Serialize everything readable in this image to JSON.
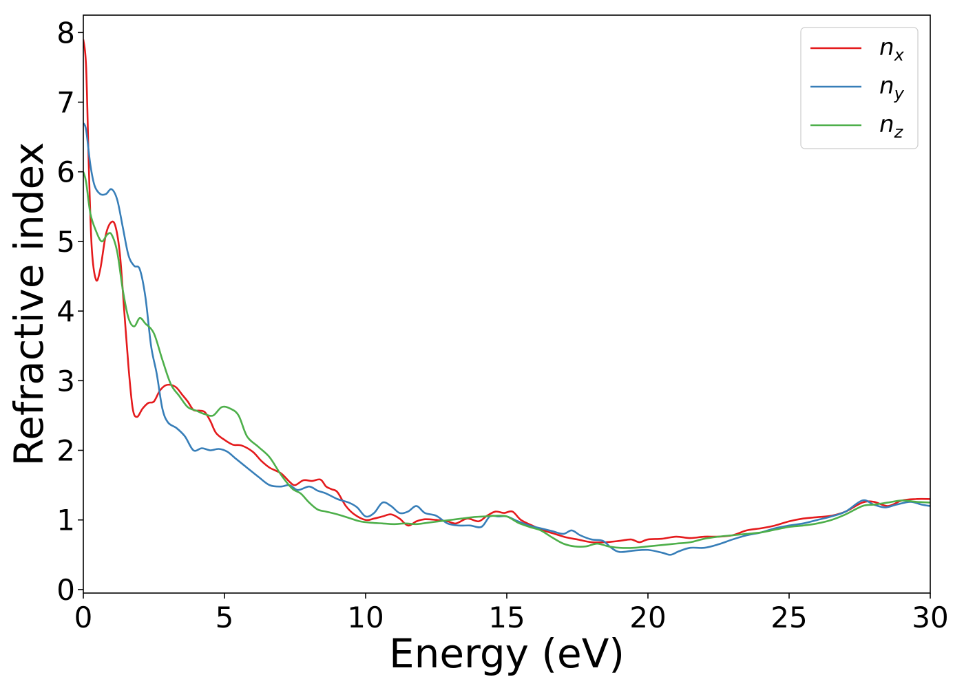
{
  "chart_data": {
    "type": "line",
    "title": "",
    "xlabel": "Energy (eV)",
    "ylabel": "Refractive index",
    "xlim": [
      0,
      30
    ],
    "ylim": [
      -0.05,
      8.25
    ],
    "xticks": [
      0,
      5,
      10,
      15,
      20,
      25,
      30
    ],
    "xtick_labels": [
      "0",
      "5",
      "10",
      "15",
      "20",
      "25",
      "30"
    ],
    "yticks": [
      0,
      1,
      2,
      3,
      4,
      5,
      6,
      7,
      8
    ],
    "ytick_labels": [
      "0",
      "1",
      "2",
      "3",
      "4",
      "5",
      "6",
      "7",
      "8"
    ],
    "grid": false,
    "legend_position": "top-right",
    "series": [
      {
        "name": "n",
        "subscript": "x",
        "color": "#e41a1c",
        "points": [
          [
            0,
            7.9
          ],
          [
            0.1,
            7.5
          ],
          [
            0.2,
            6.0
          ],
          [
            0.3,
            4.9
          ],
          [
            0.45,
            4.45
          ],
          [
            0.6,
            4.6
          ],
          [
            0.8,
            5.1
          ],
          [
            1.0,
            5.28
          ],
          [
            1.15,
            5.2
          ],
          [
            1.3,
            4.8
          ],
          [
            1.45,
            4.0
          ],
          [
            1.6,
            3.2
          ],
          [
            1.75,
            2.6
          ],
          [
            1.9,
            2.48
          ],
          [
            2.1,
            2.6
          ],
          [
            2.3,
            2.68
          ],
          [
            2.5,
            2.7
          ],
          [
            2.7,
            2.85
          ],
          [
            2.9,
            2.93
          ],
          [
            3.1,
            2.94
          ],
          [
            3.3,
            2.9
          ],
          [
            3.5,
            2.8
          ],
          [
            3.7,
            2.7
          ],
          [
            3.9,
            2.58
          ],
          [
            4.1,
            2.57
          ],
          [
            4.3,
            2.55
          ],
          [
            4.5,
            2.42
          ],
          [
            4.7,
            2.25
          ],
          [
            5.0,
            2.15
          ],
          [
            5.3,
            2.08
          ],
          [
            5.6,
            2.07
          ],
          [
            6.0,
            1.98
          ],
          [
            6.3,
            1.85
          ],
          [
            6.6,
            1.75
          ],
          [
            7.0,
            1.67
          ],
          [
            7.3,
            1.55
          ],
          [
            7.5,
            1.5
          ],
          [
            7.8,
            1.57
          ],
          [
            8.1,
            1.56
          ],
          [
            8.4,
            1.58
          ],
          [
            8.6,
            1.48
          ],
          [
            8.8,
            1.44
          ],
          [
            9.0,
            1.4
          ],
          [
            9.3,
            1.2
          ],
          [
            9.6,
            1.08
          ],
          [
            10.0,
            1.0
          ],
          [
            10.3,
            1.02
          ],
          [
            10.6,
            1.05
          ],
          [
            10.9,
            1.08
          ],
          [
            11.2,
            1.02
          ],
          [
            11.5,
            0.92
          ],
          [
            11.8,
            0.98
          ],
          [
            12.1,
            1.01
          ],
          [
            12.5,
            1.0
          ],
          [
            12.9,
            0.98
          ],
          [
            13.2,
            0.95
          ],
          [
            13.6,
            1.02
          ],
          [
            14.0,
            0.98
          ],
          [
            14.3,
            1.06
          ],
          [
            14.6,
            1.12
          ],
          [
            14.9,
            1.1
          ],
          [
            15.2,
            1.12
          ],
          [
            15.5,
            1.0
          ],
          [
            15.9,
            0.92
          ],
          [
            16.3,
            0.85
          ],
          [
            16.7,
            0.8
          ],
          [
            17.1,
            0.75
          ],
          [
            17.5,
            0.72
          ],
          [
            18.0,
            0.68
          ],
          [
            18.5,
            0.68
          ],
          [
            19.0,
            0.7
          ],
          [
            19.4,
            0.72
          ],
          [
            19.7,
            0.68
          ],
          [
            20.0,
            0.72
          ],
          [
            20.5,
            0.73
          ],
          [
            21.0,
            0.76
          ],
          [
            21.5,
            0.74
          ],
          [
            22.0,
            0.76
          ],
          [
            22.5,
            0.76
          ],
          [
            23.0,
            0.78
          ],
          [
            23.5,
            0.85
          ],
          [
            24.0,
            0.88
          ],
          [
            24.5,
            0.92
          ],
          [
            25.0,
            0.98
          ],
          [
            25.5,
            1.02
          ],
          [
            26.0,
            1.04
          ],
          [
            26.5,
            1.06
          ],
          [
            27.0,
            1.12
          ],
          [
            27.6,
            1.25
          ],
          [
            28.0,
            1.26
          ],
          [
            28.5,
            1.2
          ],
          [
            29.0,
            1.28
          ],
          [
            29.5,
            1.3
          ],
          [
            30.0,
            1.3
          ]
        ]
      },
      {
        "name": "n",
        "subscript": "y",
        "color": "#377eb8",
        "points": [
          [
            0,
            6.7
          ],
          [
            0.1,
            6.6
          ],
          [
            0.25,
            6.1
          ],
          [
            0.4,
            5.8
          ],
          [
            0.6,
            5.68
          ],
          [
            0.8,
            5.68
          ],
          [
            1.0,
            5.75
          ],
          [
            1.2,
            5.6
          ],
          [
            1.4,
            5.2
          ],
          [
            1.6,
            4.8
          ],
          [
            1.8,
            4.65
          ],
          [
            2.0,
            4.6
          ],
          [
            2.2,
            4.2
          ],
          [
            2.4,
            3.5
          ],
          [
            2.6,
            3.1
          ],
          [
            2.8,
            2.6
          ],
          [
            3.0,
            2.4
          ],
          [
            3.3,
            2.32
          ],
          [
            3.6,
            2.2
          ],
          [
            3.9,
            2.0
          ],
          [
            4.2,
            2.03
          ],
          [
            4.5,
            2.0
          ],
          [
            4.8,
            2.02
          ],
          [
            5.1,
            1.98
          ],
          [
            5.4,
            1.88
          ],
          [
            5.8,
            1.75
          ],
          [
            6.2,
            1.62
          ],
          [
            6.6,
            1.5
          ],
          [
            7.0,
            1.48
          ],
          [
            7.3,
            1.5
          ],
          [
            7.6,
            1.43
          ],
          [
            8.0,
            1.48
          ],
          [
            8.3,
            1.42
          ],
          [
            8.6,
            1.38
          ],
          [
            9.0,
            1.3
          ],
          [
            9.4,
            1.25
          ],
          [
            9.7,
            1.18
          ],
          [
            10.0,
            1.05
          ],
          [
            10.3,
            1.1
          ],
          [
            10.6,
            1.25
          ],
          [
            10.9,
            1.2
          ],
          [
            11.2,
            1.1
          ],
          [
            11.5,
            1.12
          ],
          [
            11.8,
            1.2
          ],
          [
            12.1,
            1.1
          ],
          [
            12.5,
            1.06
          ],
          [
            12.9,
            0.95
          ],
          [
            13.3,
            0.92
          ],
          [
            13.7,
            0.92
          ],
          [
            14.1,
            0.9
          ],
          [
            14.4,
            1.05
          ],
          [
            14.7,
            1.05
          ],
          [
            15.0,
            1.05
          ],
          [
            15.4,
            0.98
          ],
          [
            15.8,
            0.92
          ],
          [
            16.2,
            0.88
          ],
          [
            16.6,
            0.84
          ],
          [
            17.0,
            0.8
          ],
          [
            17.3,
            0.85
          ],
          [
            17.6,
            0.78
          ],
          [
            18.0,
            0.72
          ],
          [
            18.4,
            0.7
          ],
          [
            18.7,
            0.6
          ],
          [
            19.0,
            0.54
          ],
          [
            19.5,
            0.56
          ],
          [
            20.0,
            0.57
          ],
          [
            20.5,
            0.53
          ],
          [
            20.8,
            0.5
          ],
          [
            21.1,
            0.55
          ],
          [
            21.5,
            0.6
          ],
          [
            22.0,
            0.6
          ],
          [
            22.5,
            0.65
          ],
          [
            23.0,
            0.72
          ],
          [
            23.5,
            0.78
          ],
          [
            24.0,
            0.82
          ],
          [
            24.5,
            0.88
          ],
          [
            25.0,
            0.92
          ],
          [
            25.5,
            0.95
          ],
          [
            26.0,
            1.0
          ],
          [
            26.5,
            1.05
          ],
          [
            27.0,
            1.12
          ],
          [
            27.6,
            1.28
          ],
          [
            28.0,
            1.22
          ],
          [
            28.4,
            1.18
          ],
          [
            28.8,
            1.22
          ],
          [
            29.3,
            1.26
          ],
          [
            29.7,
            1.22
          ],
          [
            30.0,
            1.2
          ]
        ]
      },
      {
        "name": "n",
        "subscript": "z",
        "color": "#4daf4a",
        "points": [
          [
            0,
            6.0
          ],
          [
            0.1,
            5.85
          ],
          [
            0.25,
            5.4
          ],
          [
            0.45,
            5.15
          ],
          [
            0.65,
            5.0
          ],
          [
            0.85,
            5.1
          ],
          [
            1.0,
            5.1
          ],
          [
            1.2,
            4.85
          ],
          [
            1.4,
            4.3
          ],
          [
            1.6,
            3.9
          ],
          [
            1.8,
            3.78
          ],
          [
            2.0,
            3.9
          ],
          [
            2.2,
            3.82
          ],
          [
            2.5,
            3.68
          ],
          [
            2.8,
            3.3
          ],
          [
            3.1,
            2.95
          ],
          [
            3.4,
            2.78
          ],
          [
            3.7,
            2.62
          ],
          [
            4.0,
            2.57
          ],
          [
            4.3,
            2.52
          ],
          [
            4.6,
            2.5
          ],
          [
            4.9,
            2.62
          ],
          [
            5.2,
            2.6
          ],
          [
            5.5,
            2.5
          ],
          [
            5.8,
            2.2
          ],
          [
            6.2,
            2.05
          ],
          [
            6.6,
            1.9
          ],
          [
            7.0,
            1.65
          ],
          [
            7.4,
            1.45
          ],
          [
            7.7,
            1.38
          ],
          [
            8.0,
            1.25
          ],
          [
            8.3,
            1.15
          ],
          [
            8.6,
            1.12
          ],
          [
            9.0,
            1.08
          ],
          [
            9.4,
            1.03
          ],
          [
            9.8,
            0.98
          ],
          [
            10.2,
            0.96
          ],
          [
            10.6,
            0.95
          ],
          [
            11.0,
            0.94
          ],
          [
            11.4,
            0.95
          ],
          [
            11.8,
            0.94
          ],
          [
            12.2,
            0.96
          ],
          [
            12.6,
            0.98
          ],
          [
            13.0,
            1.0
          ],
          [
            13.4,
            1.02
          ],
          [
            13.8,
            1.04
          ],
          [
            14.2,
            1.05
          ],
          [
            14.6,
            1.06
          ],
          [
            15.0,
            1.05
          ],
          [
            15.4,
            0.96
          ],
          [
            15.8,
            0.9
          ],
          [
            16.2,
            0.85
          ],
          [
            16.6,
            0.75
          ],
          [
            17.0,
            0.66
          ],
          [
            17.4,
            0.62
          ],
          [
            17.8,
            0.62
          ],
          [
            18.2,
            0.66
          ],
          [
            18.6,
            0.62
          ],
          [
            19.0,
            0.6
          ],
          [
            19.5,
            0.6
          ],
          [
            20.0,
            0.62
          ],
          [
            20.5,
            0.64
          ],
          [
            21.0,
            0.66
          ],
          [
            21.5,
            0.68
          ],
          [
            22.0,
            0.73
          ],
          [
            22.5,
            0.76
          ],
          [
            23.0,
            0.78
          ],
          [
            23.5,
            0.8
          ],
          [
            24.0,
            0.82
          ],
          [
            24.5,
            0.86
          ],
          [
            25.0,
            0.9
          ],
          [
            25.5,
            0.92
          ],
          [
            26.0,
            0.95
          ],
          [
            26.5,
            1.0
          ],
          [
            27.0,
            1.08
          ],
          [
            27.6,
            1.2
          ],
          [
            28.0,
            1.22
          ],
          [
            28.5,
            1.25
          ],
          [
            29.0,
            1.28
          ],
          [
            29.5,
            1.26
          ],
          [
            30.0,
            1.25
          ]
        ]
      }
    ]
  }
}
